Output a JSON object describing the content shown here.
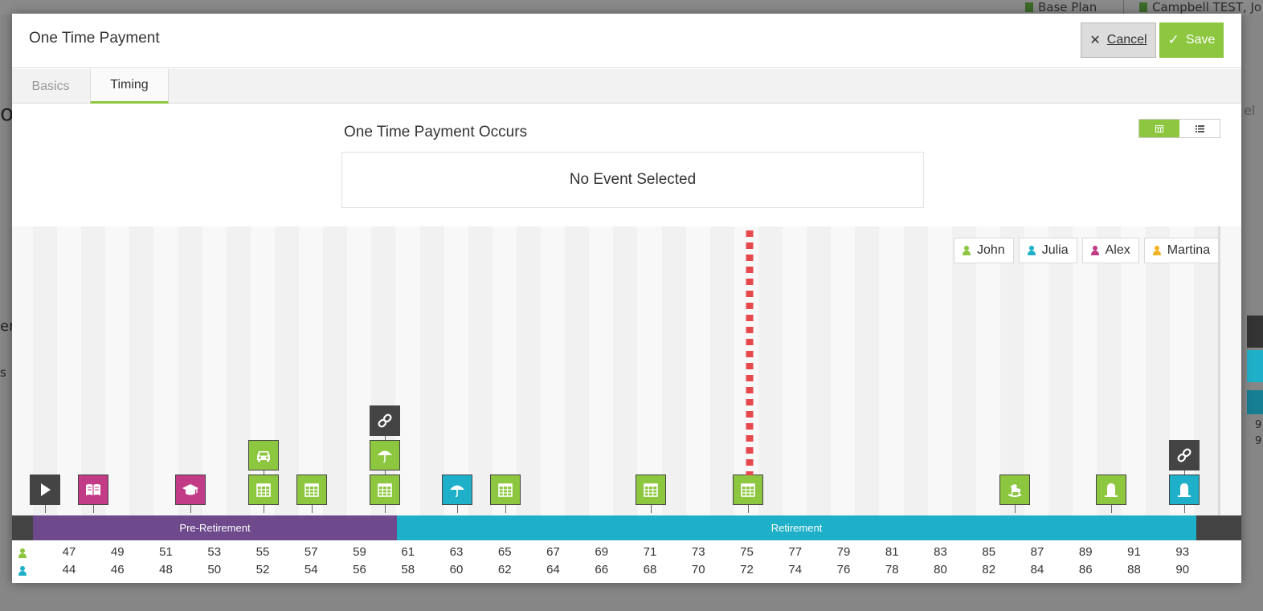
{
  "background": {
    "plan_label": "Base Plan",
    "user_label": "Campbell TEST, Jo",
    "left_fragments": [
      "or",
      "er",
      "s"
    ],
    "right_fragments": [
      "el",
      "9",
      "9"
    ]
  },
  "modal": {
    "title": "One Time Payment",
    "cancel_label": "Cancel",
    "save_label": "Save"
  },
  "tabs": [
    {
      "label": "Basics",
      "active": false
    },
    {
      "label": "Timing",
      "active": true
    }
  ],
  "occurs": {
    "title": "One Time Payment Occurs",
    "selection_text": "No Event Selected"
  },
  "legend": [
    {
      "name": "John",
      "color": "#8dc63f"
    },
    {
      "name": "Julia",
      "color": "#1fb0c9"
    },
    {
      "name": "Alex",
      "color": "#c23b87"
    },
    {
      "name": "Martina",
      "color": "#f0b323"
    }
  ],
  "phases": [
    {
      "label": "Pre-Retirement",
      "color": "#6e4a8c"
    },
    {
      "label": "Retirement",
      "color": "#1fb0c9"
    }
  ],
  "ages": {
    "john": [
      47,
      49,
      51,
      53,
      55,
      57,
      59,
      61,
      63,
      65,
      67,
      69,
      71,
      73,
      75,
      77,
      79,
      81,
      83,
      85,
      87,
      89,
      91,
      93
    ],
    "julia": [
      44,
      46,
      48,
      50,
      52,
      54,
      56,
      58,
      60,
      62,
      64,
      66,
      68,
      70,
      72,
      74,
      76,
      78,
      80,
      82,
      84,
      86,
      88,
      90
    ]
  },
  "events": [
    {
      "icon": "play-icon",
      "color": "#444444"
    },
    {
      "icon": "book-icon",
      "color": "#c23b87"
    },
    {
      "icon": "graduation-cap-icon",
      "color": "#c23b87"
    },
    {
      "icon": "car-icon",
      "color": "#8dc63f"
    },
    {
      "icon": "calendar-icon",
      "color": "#8dc63f"
    },
    {
      "icon": "calendar-icon",
      "color": "#8dc63f"
    },
    {
      "icon": "link-icon",
      "color": "#444444"
    },
    {
      "icon": "umbrella-icon",
      "color": "#8dc63f"
    },
    {
      "icon": "calendar-icon",
      "color": "#8dc63f"
    },
    {
      "icon": "umbrella-icon",
      "color": "#1fb0c9"
    },
    {
      "icon": "calendar-icon",
      "color": "#8dc63f"
    },
    {
      "icon": "calendar-icon",
      "color": "#8dc63f"
    },
    {
      "icon": "calendar-icon",
      "color": "#8dc63f"
    },
    {
      "icon": "rocking-horse-icon",
      "color": "#8dc63f"
    },
    {
      "icon": "tombstone-icon",
      "color": "#8dc63f"
    },
    {
      "icon": "link-icon",
      "color": "#444444"
    },
    {
      "icon": "tombstone-icon",
      "color": "#1fb0c9"
    }
  ]
}
